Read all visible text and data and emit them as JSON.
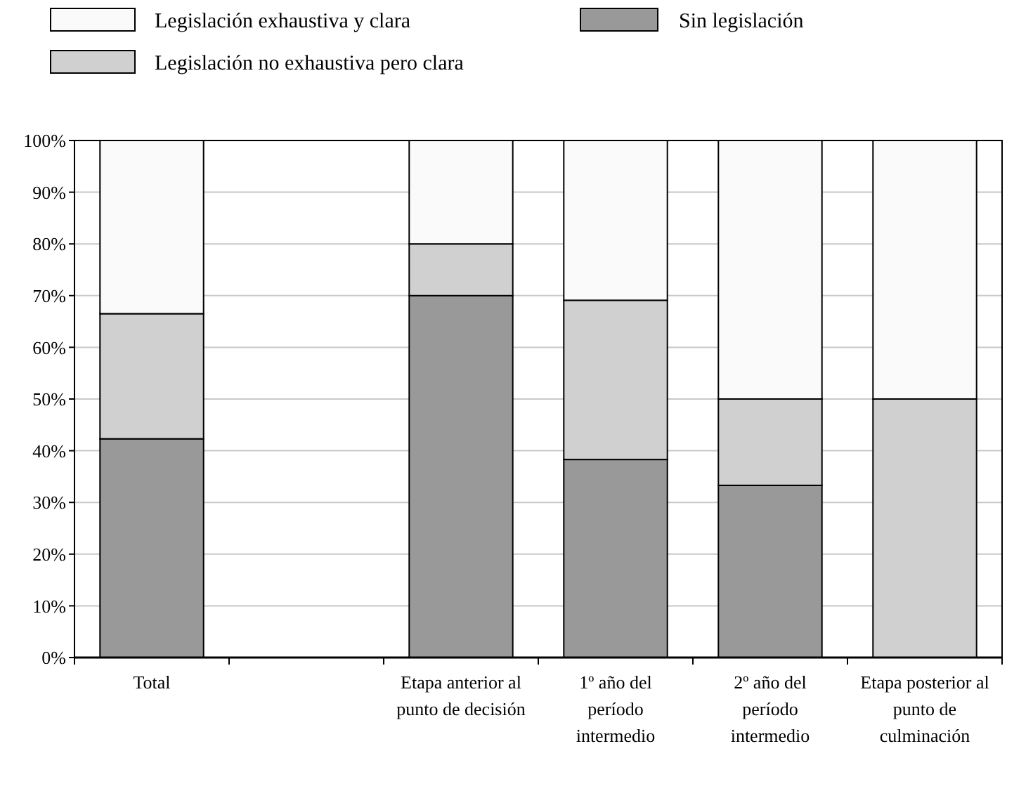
{
  "chart_data": {
    "type": "bar",
    "stacked": true,
    "categories": [
      "Total",
      null,
      "Etapa anterior al\npunto de decisión",
      "1º año del\nperíodo\nintermedio",
      "2º año del\nperíodo\nintermedio",
      "Etapa posterior al\npunto de\nculminación"
    ],
    "series": [
      {
        "name": "Sin legislación",
        "color": "#999999",
        "values": [
          42.3,
          null,
          70,
          38.3,
          33.3,
          0
        ]
      },
      {
        "name": "Legislación no exhaustiva pero clara",
        "color": "#d0d0d0",
        "values": [
          24.2,
          null,
          10,
          30.8,
          16.7,
          50
        ]
      },
      {
        "name": "Legislación exhaustiva y clara",
        "color": "#fafafa",
        "values": [
          33.5,
          null,
          20,
          30.9,
          50,
          50
        ]
      }
    ],
    "ylim": [
      0,
      100
    ],
    "yticks": [
      {
        "value": 0,
        "label": "0%"
      },
      {
        "value": 10,
        "label": "10%"
      },
      {
        "value": 20,
        "label": "20%"
      },
      {
        "value": 30,
        "label": "30%"
      },
      {
        "value": 40,
        "label": "40%"
      },
      {
        "value": 50,
        "label": "50%"
      },
      {
        "value": 60,
        "label": "60%"
      },
      {
        "value": 70,
        "label": "70%"
      },
      {
        "value": 80,
        "label": "80%"
      },
      {
        "value": 90,
        "label": "90%"
      },
      {
        "value": 100,
        "label": "100%"
      }
    ],
    "grid": "y",
    "legend": "top"
  }
}
